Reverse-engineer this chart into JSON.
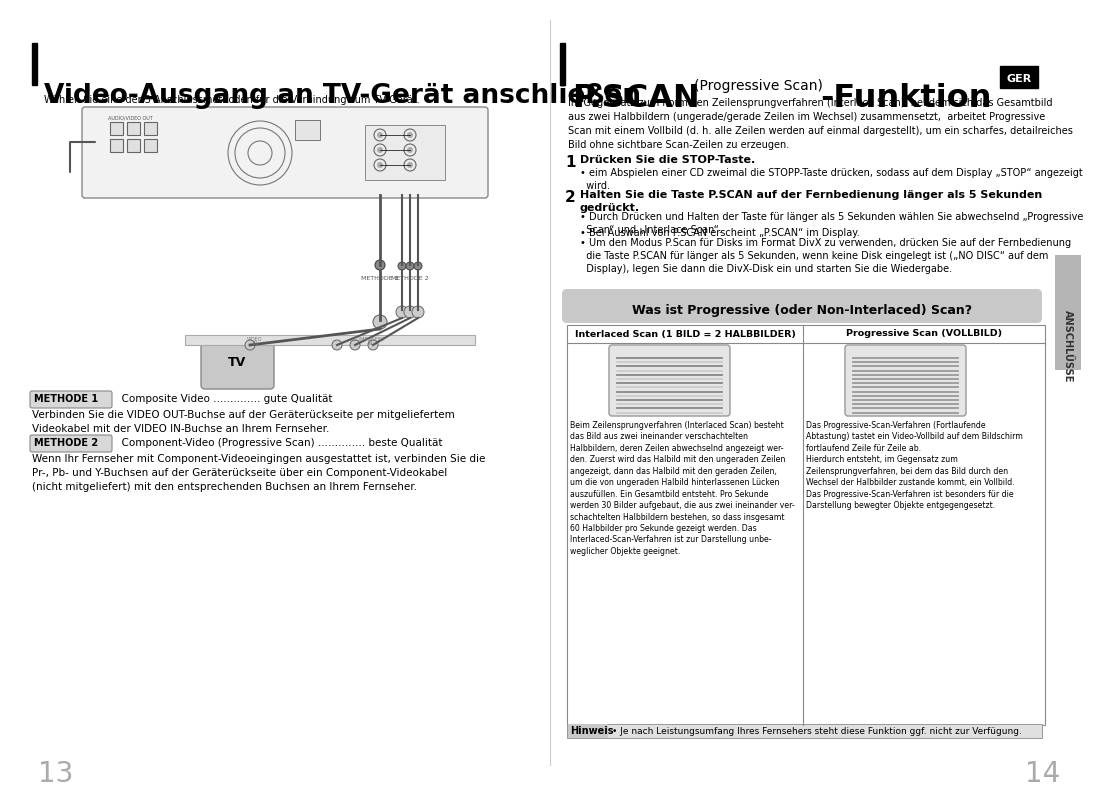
{
  "bg_color": "#ffffff",
  "left_title": "Video-Ausgang an TV-Gerät anschließen",
  "left_subtitle": "Wählen Sie eine der 3 Anschlussmethoden für die Verbindung zum TV-Gerät.",
  "right_title_bold": "P.SCAN",
  "right_title_small": "(Progressive Scan)",
  "right_title_end": "-Funktion",
  "ger_label": "GER",
  "right_intro": "Im Gegensatz zum normalen Zeilensprungverfahren (Interlace Scan), bei dem sich das Gesamtbild\naus zwei Halbbildern (ungerade/gerade Zeilen im Wechsel) zusammensetzt,  arbeitet Progressive\nScan mit einem Vollbild (d. h. alle Zeilen werden auf einmal dargestellt), um ein scharfes, detailreiches\nBild ohne sichtbare Scan-Zeilen zu erzeugen.",
  "step1_num": "1",
  "step1_title": "Drücken Sie die STOP-Taste.",
  "step1_bullet": "• eim Abspielen einer CD zweimal die STOPP-Taste drücken, sodass auf dem Display „STOP“ angezeigt\n  wird.",
  "step2_num": "2",
  "step2_title": "Halten Sie die Taste P.SCAN auf der Fernbedienung länger als 5 Sekunden\ngedrückt.",
  "step2_bullet1": "• Durch Drücken und Halten der Taste für länger als 5 Sekunden wählen Sie abwechselnd „Progressive\n  Scan“ und „Interlace Scan“.",
  "step2_bullet2": "• Bei Auswahl von P.SCAN erscheint „P.SCAN“ im Display.",
  "step2_bullet3": "• Um den Modus P.Scan für Disks im Format DivX zu verwenden, drücken Sie auf der Fernbedienung\n  die Taste P.SCAN für länger als 5 Sekunden, wenn keine Disk eingelegt ist („NO DISC“ auf dem\n  Display), legen Sie dann die DivX-Disk ein und starten Sie die Wiedergabe.",
  "was_ist_title": "Was ist Progressive (oder Non-Interlaced) Scan?",
  "interlaced_header": "Interlaced Scan (1 BILD = 2 HALBBILDER)",
  "progressive_header": "Progressive Scan (VOLLBILD)",
  "interlaced_desc": "Beim Zeilensprungverfahren (Interlaced Scan) besteht\ndas Bild aus zwei ineinander verschachtelten\nHalbbildern, deren Zeilen abwechselnd angezeigt wer-\nden. Zuerst wird das Halbild mit den ungeraden Zeilen\nangezeigt, dann das Halbild mit den geraden Zeilen,\num die von ungeraden Halbild hinterlassenen Lücken\nauszufüllen. Ein Gesamtbild entsteht. Pro Sekunde\nwerden 30 Bilder aufgebaut, die aus zwei ineinander ver-\nschachtelten Halbbildern bestehen, so dass insgesamt\n60 Halbbilder pro Sekunde gezeigt werden. Das\nInterlaced-Scan-Verfahren ist zur Darstellung unbe-\nweglicher Objekte geeignet.",
  "progressive_desc": "Das Progressive-Scan-Verfahren (Fortlaufende\nAbtastung) tastet ein Video-Vollbild auf dem Bildschirm\nfortlaufend Zeile für Zeile ab.\nHierdurch entsteht, im Gegensatz zum\nZeilensprungverfahren, bei dem das Bild durch den\nWechsel der Halbbilder zustande kommt, ein Vollbild.\nDas Progressive-Scan-Verfahren ist besonders für die\nDarstellung bewegter Objekte entgegengesetzt.",
  "hinweis_label": "Hinweis",
  "hinweis_text": "• Je nach Leistungsumfang Ihres Fernsehers steht diese Funktion ggf. nicht zur Verfügung.",
  "methode1_label": "METHODE 1",
  "methode1_text": "  Composite Video .............. gute Qualität",
  "methode1_desc": "Verbinden Sie die VIDEO OUT-Buchse auf der Geräterückseite per mitgeliefertem\nVideokabel mit der VIDEO IN-Buchse an Ihrem Fernseher.",
  "methode2_label": "METHODE 2",
  "methode2_text": "  Component-Video (Progressive Scan) .............. beste Qualität",
  "methode2_desc": "Wenn Ihr Fernseher mit Component-Videoeingingen ausgestattet ist, verbinden Sie die\nPr-, Pb- und Y-Buchsen auf der Geräterückseite über ein Component-Videokabel\n(nicht mitgeliefert) mit den entsprechenden Buchsen an Ihrem Fernseher.",
  "page_left": "13",
  "page_right": "14",
  "anschlusse_label": "ANSCHLÜSSE"
}
